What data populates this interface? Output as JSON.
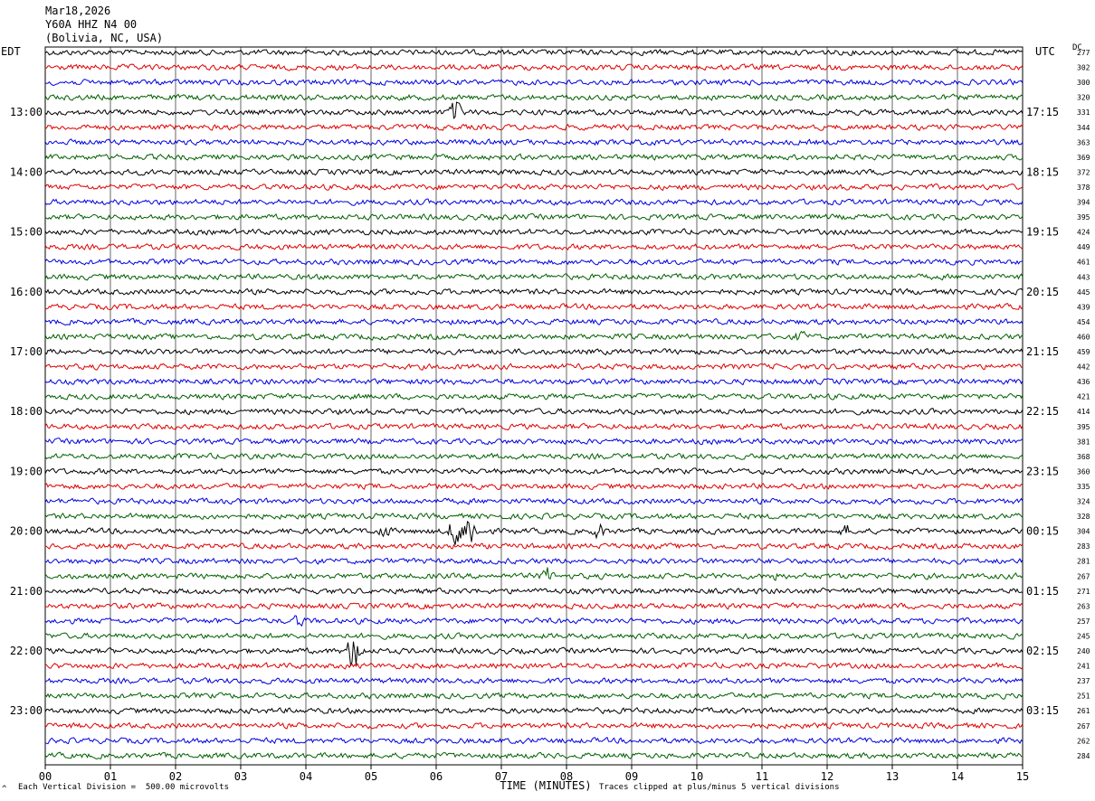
{
  "header": {
    "date": "Mar18,2026",
    "station": "Y60A HHZ N4 00",
    "location": "(Bolivia, NC, USA)"
  },
  "left_zone": "EDT",
  "right_zone": "UTC",
  "dc_label": "DC",
  "footer": {
    "scale_note": "Each Vertical Division =  500.00 microvolts",
    "clip_note": "Traces clipped at plus/minus 5 vertical divisions",
    "corner_mark": "^"
  },
  "colors": {
    "trace_cycle": [
      "#000000",
      "#e00000",
      "#0000e0",
      "#006000"
    ],
    "grid": "#000000",
    "background": "#ffffff"
  },
  "chart_data": {
    "type": "line",
    "title": "Y60A HHZ N4 00",
    "xlabel": "TIME (MINUTES)",
    "x_ticks": [
      "00",
      "01",
      "02",
      "03",
      "04",
      "05",
      "06",
      "07",
      "08",
      "09",
      "10",
      "11",
      "12",
      "13",
      "14",
      "15"
    ],
    "xlim": [
      0,
      15
    ],
    "rows_per_hour": 4,
    "row_count": 48,
    "left_hour_labels": [
      {
        "row": 4,
        "label": "13:00"
      },
      {
        "row": 8,
        "label": "14:00"
      },
      {
        "row": 12,
        "label": "15:00"
      },
      {
        "row": 16,
        "label": "16:00"
      },
      {
        "row": 20,
        "label": "17:00"
      },
      {
        "row": 24,
        "label": "18:00"
      },
      {
        "row": 28,
        "label": "19:00"
      },
      {
        "row": 32,
        "label": "20:00"
      },
      {
        "row": 36,
        "label": "21:00"
      },
      {
        "row": 40,
        "label": "22:00"
      },
      {
        "row": 44,
        "label": "23:00"
      }
    ],
    "right_hour_labels": [
      {
        "row": 4,
        "label": "17:15"
      },
      {
        "row": 8,
        "label": "18:15"
      },
      {
        "row": 12,
        "label": "19:15"
      },
      {
        "row": 16,
        "label": "20:15"
      },
      {
        "row": 20,
        "label": "21:15"
      },
      {
        "row": 24,
        "label": "22:15"
      },
      {
        "row": 28,
        "label": "23:15"
      },
      {
        "row": 32,
        "label": "00:15"
      },
      {
        "row": 36,
        "label": "01:15"
      },
      {
        "row": 40,
        "label": "02:15"
      },
      {
        "row": 44,
        "label": "03:15"
      }
    ],
    "dc_offsets": [
      277,
      302,
      300,
      320,
      331,
      344,
      363,
      369,
      372,
      378,
      394,
      395,
      424,
      449,
      461,
      443,
      445,
      439,
      454,
      460,
      459,
      442,
      436,
      421,
      414,
      395,
      381,
      368,
      360,
      335,
      324,
      328,
      304,
      283,
      281,
      267,
      271,
      263,
      257,
      245,
      240,
      241,
      237,
      251,
      261,
      267,
      262,
      284
    ],
    "events": [
      {
        "row": 4,
        "minute": 6.3,
        "amplitude": 14
      },
      {
        "row": 19,
        "minute": 11.6,
        "amplitude": 7
      },
      {
        "row": 32,
        "minute": 6.3,
        "amplitude": 18
      },
      {
        "row": 32,
        "minute": 6.5,
        "amplitude": 22
      },
      {
        "row": 32,
        "minute": 5.2,
        "amplitude": 9
      },
      {
        "row": 32,
        "minute": 8.5,
        "amplitude": 9
      },
      {
        "row": 32,
        "minute": 12.3,
        "amplitude": 8
      },
      {
        "row": 35,
        "minute": 7.7,
        "amplitude": 10
      },
      {
        "row": 35,
        "minute": 11.2,
        "amplitude": 7
      },
      {
        "row": 38,
        "minute": 3.9,
        "amplitude": 8
      },
      {
        "row": 40,
        "minute": 4.75,
        "amplitude": 26
      }
    ]
  }
}
